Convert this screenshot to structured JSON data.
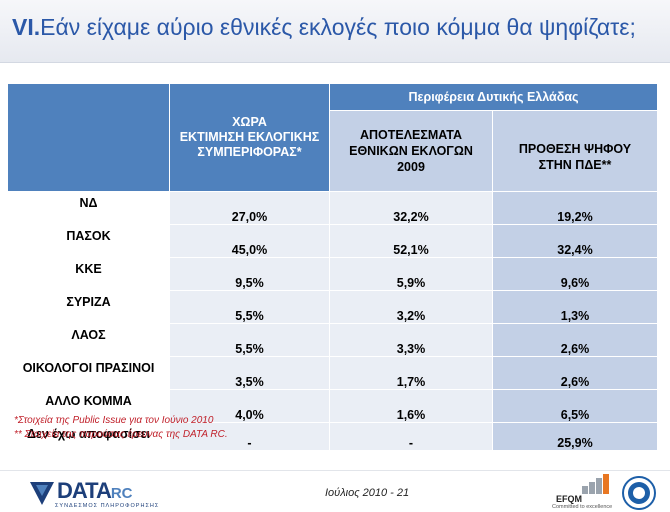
{
  "title": {
    "number": "VI.",
    "text": "Εάν είχαμε αύριο εθνικές εκλογές ποιο κόμμα θα ψηφίζατε;"
  },
  "table": {
    "col_country": [
      "ΧΩΡΑ",
      "ΕΚΤΙΜΗΣΗ ΕΚΛΟΓΙΚΗΣ",
      "ΣΥΜΠΕΡΙΦΟΡΑΣ*"
    ],
    "region": "Περιφέρεια Δυτικής Ελλάδας",
    "col_results": [
      "ΑΠΟΤΕΛΕΣΜΑΤΑ",
      "ΕΘΝΙΚΩΝ ΕΚΛΟΓΩΝ",
      "2009"
    ],
    "col_intent": [
      "ΠΡΟΘΕΣΗ ΨΗΦΟΥ",
      "ΣΤΗΝ ΠΔΕ**"
    ],
    "rows": [
      {
        "party": "ΝΔ",
        "country": "27,0%",
        "results": "32,2%",
        "intent": "19,2%"
      },
      {
        "party": "ΠΑΣΟΚ",
        "country": "45,0%",
        "results": "52,1%",
        "intent": "32,4%"
      },
      {
        "party": "ΚΚΕ",
        "country": "9,5%",
        "results": "5,9%",
        "intent": "9,6%"
      },
      {
        "party": "ΣΥΡΙΖΑ",
        "country": "5,5%",
        "results": "3,2%",
        "intent": "1,3%"
      },
      {
        "party": "ΛΑΟΣ",
        "country": "5,5%",
        "results": "3,3%",
        "intent": "2,6%"
      },
      {
        "party": "ΟΙΚΟΛΟΓΟΙ ΠΡΑΣΙΝΟΙ",
        "country": "3,5%",
        "results": "1,7%",
        "intent": "2,6%"
      },
      {
        "party": "ΑΛΛΟ ΚΟΜΜΑ",
        "country": "4,0%",
        "results": "1,6%",
        "intent": "6,5%"
      },
      {
        "party": "Δεν έχω αποφασίσει",
        "country": "-",
        "results": "-",
        "intent": "25,9%"
      }
    ]
  },
  "notes": {
    "note1": "*Στοιχεία της Public Issue για τον Ιούνιο 2010",
    "note2": "** Στοιχεία της παρούσας έρευνας της DATA RC."
  },
  "footer": {
    "logo_name": "DATA",
    "logo_suffix": "RC",
    "logo_tagline": "ΣΥΝΔΕΣΜΟΣ ΠΛΗΡΟΦΟΡΗΣΗΣ",
    "date_page": "Ιούλιος 2010 -  21",
    "efqm_label": "EFQM",
    "efqm_tagline": "Committed to excellence"
  },
  "colors": {
    "title": "#2b58a8",
    "header_blue": "#4f81bd",
    "header_light": "#c3d0e6",
    "cell_light": "#eaeef5",
    "note_red": "#c0202a"
  }
}
